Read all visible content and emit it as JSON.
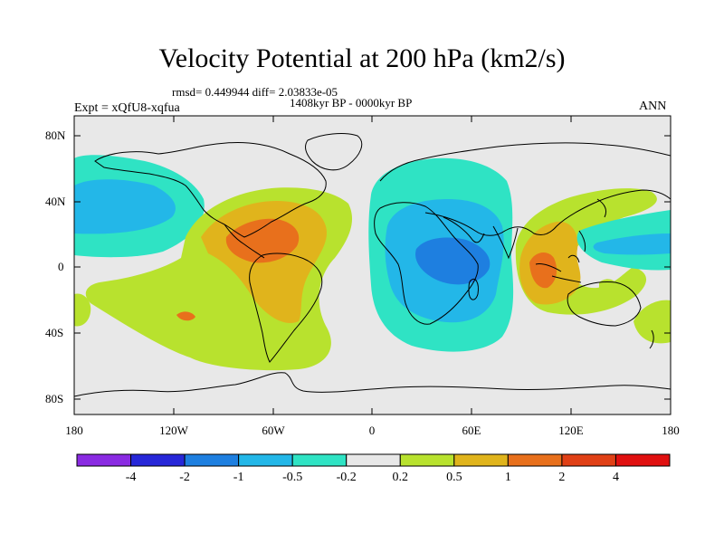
{
  "title": "Velocity Potential at 200 hPa (km2/s)",
  "stats": "rmsd= 0.449944 diff= 2.03833e-05",
  "period": "1408kyr BP - 0000kyr BP",
  "experiment": "Expt = xQfU8-xqfua",
  "season": "ANN",
  "latitude_labels": [
    "80N",
    "40N",
    "0",
    "40S",
    "80S"
  ],
  "longitude_labels": [
    "180",
    "120W",
    "60W",
    "0",
    "60E",
    "120E",
    "180"
  ],
  "colorbar": {
    "labels": [
      "-4",
      "-2",
      "-1",
      "-0.5",
      "-0.2",
      "0.2",
      "0.5",
      "1",
      "2",
      "4"
    ],
    "colors": [
      "#8a2be2",
      "#2727d8",
      "#1e7fe0",
      "#23b7e8",
      "#2fe3c4",
      "#e8e8e8",
      "#b8e22e",
      "#e0b41c",
      "#e8701c",
      "#e04016",
      "#e01010"
    ]
  },
  "colors": {
    "background": "#e8e8e8",
    "coast": "#000000"
  }
}
